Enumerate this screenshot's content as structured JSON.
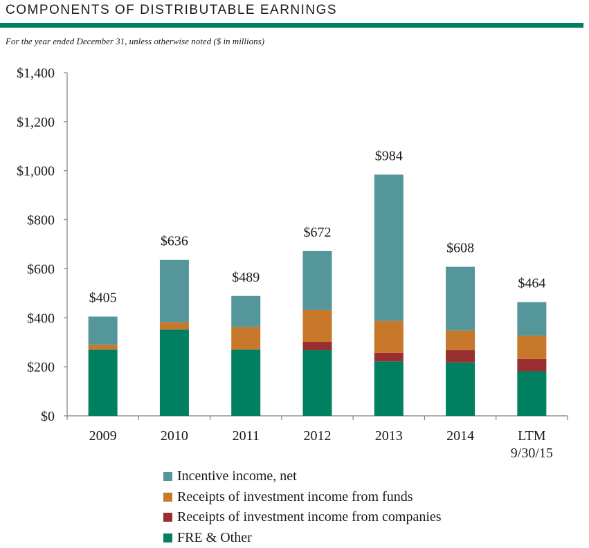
{
  "header": {
    "title": "COMPONENTS OF DISTRIBUTABLE EARNINGS",
    "subtitle": "For the year ended December 31, unless otherwise noted ($ in millions)",
    "rule_color": "#00805e"
  },
  "chart_data": {
    "type": "bar",
    "stacked": true,
    "categories": [
      "2009",
      "2010",
      "2011",
      "2012",
      "2013",
      "2014",
      "LTM 9/30/15"
    ],
    "series": [
      {
        "name": "FRE & Other",
        "color": "#008060",
        "values": [
          270,
          352,
          270,
          268,
          222,
          218,
          182
        ]
      },
      {
        "name": "Receipts of investment income from companies",
        "color": "#9a2f32",
        "values": [
          0,
          0,
          0,
          34,
          35,
          50,
          50
        ]
      },
      {
        "name": "Receipts of investment income from funds",
        "color": "#c7782b",
        "values": [
          20,
          30,
          92,
          130,
          130,
          80,
          95
        ]
      },
      {
        "name": "Incentive income, net",
        "color": "#55969b",
        "values": [
          115,
          254,
          127,
          240,
          597,
          260,
          137
        ]
      }
    ],
    "totals": [
      405,
      636,
      489,
      672,
      984,
      608,
      464
    ],
    "total_labels": [
      "$405",
      "$636",
      "$489",
      "$672",
      "$984",
      "$608",
      "$464"
    ],
    "yticks": [
      "$0",
      "$200",
      "$400",
      "$600",
      "$800",
      "$1,000",
      "$1,200",
      "$1,400"
    ],
    "ylim": [
      0,
      1400
    ],
    "legend_position": "bottom",
    "legend_order": [
      "Incentive income, net",
      "Receipts of investment income from funds",
      "Receipts of investment income from companies",
      "FRE & Other"
    ]
  }
}
